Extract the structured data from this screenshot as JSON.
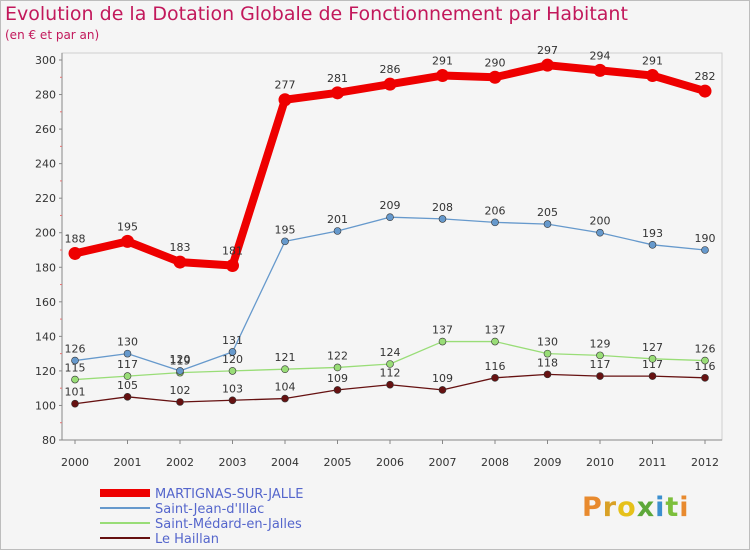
{
  "title": "Evolution de la Dotation Globale de Fonctionnement par Habitant",
  "subtitle": "(en € et par an)",
  "logo_text": "Proxiti",
  "chart_data": {
    "type": "line",
    "title": "Evolution de la Dotation Globale de Fonctionnement par Habitant",
    "subtitle": "(en € et par an)",
    "x": [
      2000,
      2001,
      2002,
      2003,
      2004,
      2005,
      2006,
      2007,
      2008,
      2009,
      2010,
      2011,
      2012
    ],
    "ylim": [
      80,
      300
    ],
    "yticks": [
      80,
      100,
      120,
      140,
      160,
      180,
      200,
      220,
      240,
      260,
      280,
      300
    ],
    "grid": false,
    "legend_position": "bottom-left",
    "series": [
      {
        "name": "MARTIGNAS-SUR-JALLE",
        "color": "#ee0000",
        "values": [
          188,
          195,
          183,
          181,
          277,
          281,
          286,
          291,
          290,
          297,
          294,
          291,
          282
        ]
      },
      {
        "name": "Saint-Jean-d'Illac",
        "color": "#6699cc",
        "values": [
          126,
          130,
          120,
          131,
          195,
          201,
          209,
          208,
          206,
          205,
          200,
          193,
          190
        ]
      },
      {
        "name": "Saint-Médard-en-Jalles",
        "color": "#99dd77",
        "values": [
          115,
          117,
          119,
          120,
          121,
          122,
          124,
          137,
          137,
          130,
          129,
          127,
          126
        ]
      },
      {
        "name": "Le Haillan",
        "color": "#661111",
        "values": [
          101,
          105,
          102,
          103,
          104,
          109,
          112,
          109,
          116,
          118,
          117,
          117,
          116
        ]
      }
    ]
  }
}
